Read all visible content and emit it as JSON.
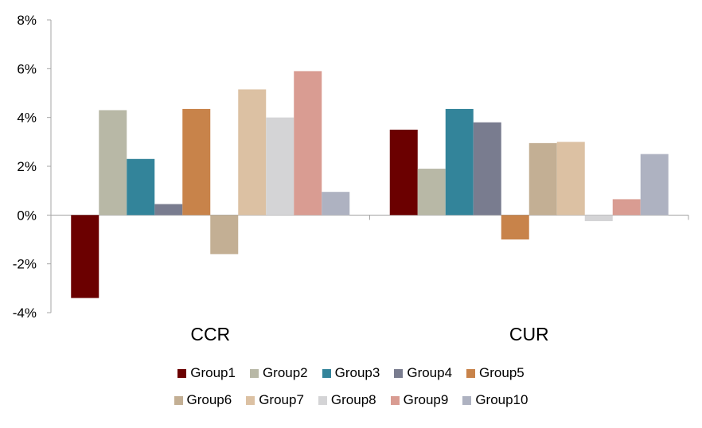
{
  "chart_data": {
    "type": "bar",
    "categories": [
      "CCR",
      "CUR"
    ],
    "ylim": [
      -4,
      8
    ],
    "yticks": [
      -4,
      -2,
      0,
      2,
      4,
      6,
      8
    ],
    "ytick_labels": [
      "-4%",
      "-2%",
      "0%",
      "2%",
      "4%",
      "6%",
      "8%"
    ],
    "legend_position": "bottom",
    "grid": false,
    "series": [
      {
        "name": "Group1",
        "color": "#6b0000",
        "values": [
          -3.4,
          3.5
        ]
      },
      {
        "name": "Group2",
        "color": "#b8b8a6",
        "values": [
          4.3,
          1.9
        ]
      },
      {
        "name": "Group3",
        "color": "#33849a",
        "values": [
          2.3,
          4.35
        ]
      },
      {
        "name": "Group4",
        "color": "#797c8f",
        "values": [
          0.45,
          3.8
        ]
      },
      {
        "name": "Group5",
        "color": "#c8834a",
        "values": [
          4.35,
          -1.0
        ]
      },
      {
        "name": "Group6",
        "color": "#c3af94",
        "values": [
          -1.6,
          2.95
        ]
      },
      {
        "name": "Group7",
        "color": "#dcc1a3",
        "values": [
          5.15,
          3.0
        ]
      },
      {
        "name": "Group8",
        "color": "#d4d4d6",
        "values": [
          4.0,
          -0.25
        ]
      },
      {
        "name": "Group9",
        "color": "#d99c92",
        "values": [
          5.9,
          0.65
        ]
      },
      {
        "name": "Group10",
        "color": "#aeb2c1",
        "values": [
          0.95,
          2.5
        ]
      }
    ]
  }
}
